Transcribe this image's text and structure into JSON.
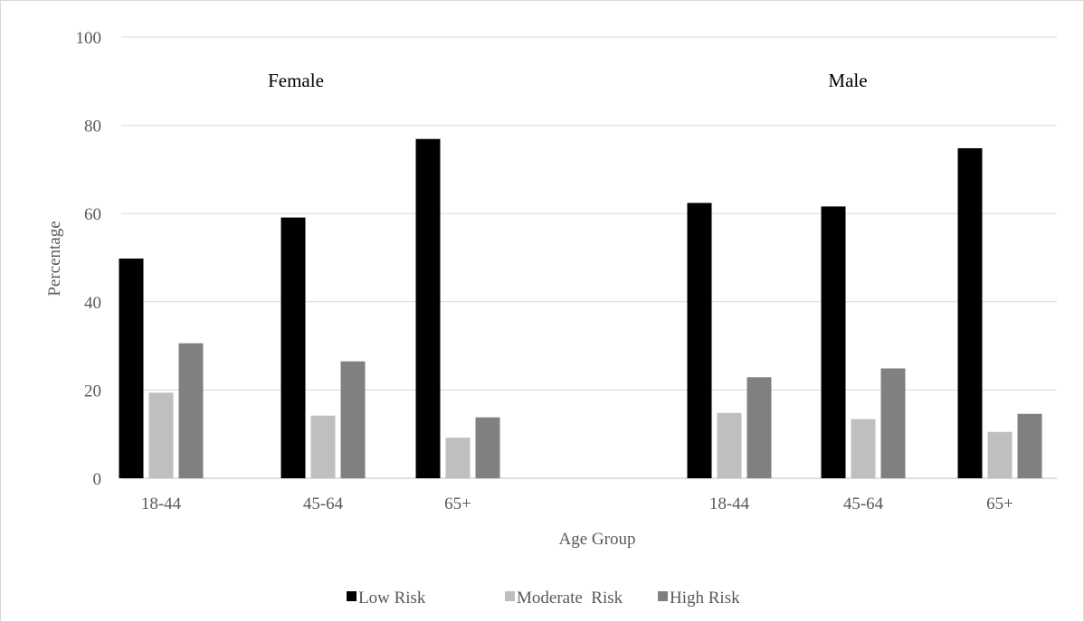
{
  "chart_data": {
    "type": "bar",
    "title": "",
    "xlabel": "Age Group",
    "ylabel": "Percentage",
    "ylim": [
      0,
      100
    ],
    "yticks": [
      0,
      20,
      40,
      60,
      80,
      100
    ],
    "grid": true,
    "legend_position": "bottom",
    "groups": [
      {
        "label": "Female",
        "categories": [
          "18-44",
          "45-64",
          "65+"
        ],
        "series": [
          {
            "name": "Low Risk",
            "values": [
              49.8,
              59.1,
              76.9
            ]
          },
          {
            "name": "Moderate  Risk",
            "values": [
              19.4,
              14.2,
              9.2
            ]
          },
          {
            "name": "High Risk",
            "values": [
              30.6,
              26.5,
              13.8
            ]
          }
        ]
      },
      {
        "label": "Male",
        "categories": [
          "18-44",
          "45-64",
          "65+"
        ],
        "series": [
          {
            "name": "Low Risk",
            "values": [
              62.4,
              61.6,
              74.8
            ]
          },
          {
            "name": "Moderate  Risk",
            "values": [
              14.8,
              13.4,
              10.5
            ]
          },
          {
            "name": "High Risk",
            "values": [
              22.9,
              24.9,
              14.6
            ]
          }
        ]
      }
    ],
    "colors": {
      "Low Risk": "#000000",
      "Moderate  Risk": "#bfbfbf",
      "High Risk": "#808080"
    }
  }
}
